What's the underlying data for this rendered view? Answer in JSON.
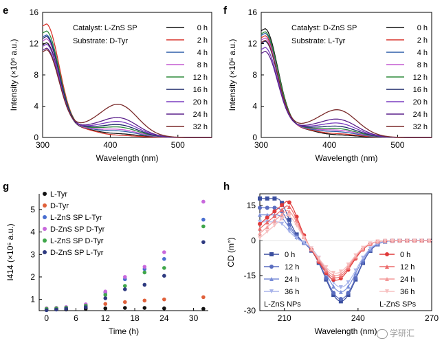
{
  "panels": [
    {
      "letter": "e",
      "type": "line",
      "xlabel": "Wavelength (nm)",
      "ylabel": "Intensity (×10⁶ a.u.)",
      "xlim": [
        300,
        550
      ],
      "ylim": [
        0,
        16
      ],
      "xticks": [
        300,
        400,
        500
      ],
      "yticks": [
        0,
        4,
        8,
        12,
        16
      ],
      "annotations": [
        "Catalyst: L-ZnS SP",
        "Substrate: D-Tyr"
      ],
      "legend": "right",
      "series": [
        {
          "name": "0 h",
          "color": "#111111",
          "peak": 12.1,
          "p412": 0.45
        },
        {
          "name": "2 h",
          "color": "#d9342b",
          "peak": 14.5,
          "p412": 0.25
        },
        {
          "name": "4 h",
          "color": "#2f5ea8",
          "peak": 13.1,
          "p412": 0.8
        },
        {
          "name": "8 h",
          "color": "#c45ad1",
          "peak": 12.6,
          "p412": 1.0
        },
        {
          "name": "12 h",
          "color": "#2e8b3c",
          "peak": 13.6,
          "p412": 1.3
        },
        {
          "name": "16 h",
          "color": "#1e2a6a",
          "peak": 12.9,
          "p412": 1.6
        },
        {
          "name": "20 h",
          "color": "#7a3cc0",
          "peak": 11.9,
          "p412": 2.0
        },
        {
          "name": "24 h",
          "color": "#5a1f8a",
          "peak": 11.4,
          "p412": 2.5
        },
        {
          "name": "32 h",
          "color": "#7a2a2a",
          "peak": 11.2,
          "p412": 4.2
        }
      ]
    },
    {
      "letter": "f",
      "type": "line",
      "xlabel": "Wavelength (nm)",
      "ylabel": "Intensity (×10⁶ a.u.)",
      "xlim": [
        300,
        550
      ],
      "ylim": [
        0,
        16
      ],
      "xticks": [
        300,
        400,
        500
      ],
      "yticks": [
        0,
        4,
        8,
        12,
        16
      ],
      "annotations": [
        "Catalyst: D-ZnS SP",
        "Substrate: L-Tyr"
      ],
      "legend": "right",
      "series": [
        {
          "name": "0 h",
          "color": "#111111",
          "peak": 13.9,
          "p412": 0.3
        },
        {
          "name": "2 h",
          "color": "#d9342b",
          "peak": 13.0,
          "p412": 0.45
        },
        {
          "name": "4 h",
          "color": "#2f5ea8",
          "peak": 13.3,
          "p412": 0.7
        },
        {
          "name": "8 h",
          "color": "#c45ad1",
          "peak": 12.7,
          "p412": 0.9
        },
        {
          "name": "12 h",
          "color": "#2e8b3c",
          "peak": 13.5,
          "p412": 1.1
        },
        {
          "name": "16 h",
          "color": "#1e2a6a",
          "peak": 12.3,
          "p412": 1.4
        },
        {
          "name": "20 h",
          "color": "#7a3cc0",
          "peak": 11.5,
          "p412": 1.8
        },
        {
          "name": "24 h",
          "color": "#5a1f8a",
          "peak": 11.0,
          "p412": 2.3
        },
        {
          "name": "32 h",
          "color": "#7a2a2a",
          "peak": 12.4,
          "p412": 3.5
        }
      ]
    },
    {
      "letter": "g",
      "type": "scatter",
      "xlabel": "Time (h)",
      "ylabel": "I414 (×10⁶ a.u.)",
      "xlim": [
        -1.5,
        33
      ],
      "ylim": [
        0.5,
        5.7
      ],
      "xticks": [
        0,
        6,
        12,
        18,
        24,
        30
      ],
      "yticks": [
        1,
        2,
        3,
        4,
        5
      ],
      "legend": "top-left",
      "series": [
        {
          "name": "L-Tyr",
          "color": "#111111",
          "x": [
            0,
            2,
            4,
            8,
            12,
            16,
            20,
            24,
            32
          ],
          "y": [
            0.55,
            0.55,
            0.55,
            0.58,
            0.6,
            0.62,
            0.62,
            0.6,
            0.58
          ]
        },
        {
          "name": "D-Tyr",
          "color": "#e0603a",
          "x": [
            0,
            2,
            4,
            8,
            12,
            16,
            20,
            24,
            32
          ],
          "y": [
            0.6,
            0.62,
            0.63,
            0.7,
            0.8,
            0.88,
            0.95,
            1.0,
            1.1
          ]
        },
        {
          "name": "L-ZnS SP L-Tyr",
          "color": "#4a6fd0",
          "x": [
            0,
            2,
            4,
            8,
            12,
            16,
            20,
            24,
            32
          ],
          "y": [
            0.55,
            0.58,
            0.62,
            0.75,
            1.3,
            1.9,
            2.35,
            2.8,
            4.55
          ]
        },
        {
          "name": "D-ZnS SP D-Tyr",
          "color": "#c868dc",
          "x": [
            0,
            2,
            4,
            8,
            12,
            16,
            20,
            24,
            32
          ],
          "y": [
            0.6,
            0.62,
            0.66,
            0.78,
            1.35,
            2.0,
            2.45,
            3.1,
            5.35
          ]
        },
        {
          "name": "L-ZnS SP D-Tyr",
          "color": "#3fa64a",
          "x": [
            0,
            2,
            4,
            8,
            12,
            16,
            20,
            24,
            32
          ],
          "y": [
            0.58,
            0.6,
            0.63,
            0.72,
            1.2,
            1.6,
            2.2,
            2.4,
            4.25
          ]
        },
        {
          "name": "D-ZnS SP L-Tyr",
          "color": "#2e3a80",
          "x": [
            0,
            2,
            4,
            8,
            12,
            16,
            20,
            24,
            32
          ],
          "y": [
            0.52,
            0.55,
            0.58,
            0.65,
            1.05,
            1.45,
            1.65,
            2.05,
            3.55
          ]
        }
      ]
    },
    {
      "letter": "h",
      "type": "line",
      "xlabel": "Wavelength (nm)",
      "ylabel": "CD (m°)",
      "xlim": [
        200,
        270
      ],
      "ylim": [
        -30,
        20
      ],
      "xticks": [
        210,
        240,
        270
      ],
      "yticks": [
        -30,
        -15,
        0,
        15
      ],
      "legend": "bottom",
      "groups": [
        "L-ZnS NPs",
        "L-ZnS SPs"
      ],
      "series": [
        {
          "name": "0 h",
          "group": 0,
          "color": "#3b4f9f",
          "marker": "square",
          "amp": 26,
          "pos": 18
        },
        {
          "name": "12 h",
          "group": 0,
          "color": "#5a6dc0",
          "marker": "circle",
          "amp": 25,
          "pos": 14
        },
        {
          "name": "24 h",
          "group": 0,
          "color": "#7a8ed8",
          "marker": "triangle",
          "amp": 22,
          "pos": 11
        },
        {
          "name": "36 h",
          "group": 0,
          "color": "#a8b4ea",
          "marker": "tri-down",
          "amp": 20,
          "pos": 8
        },
        {
          "name": "0 h",
          "group": 1,
          "color": "#e03a3a",
          "marker": "circle",
          "amp": 17,
          "pos": 17
        },
        {
          "name": "12 h",
          "group": 1,
          "color": "#ec6a6a",
          "marker": "triangle",
          "amp": 16,
          "pos": 15
        },
        {
          "name": "24 h",
          "group": 1,
          "color": "#f39a9a",
          "marker": "triangle",
          "amp": 15,
          "pos": 13
        },
        {
          "name": "36 h",
          "group": 1,
          "color": "#f7c0c0",
          "marker": "tri-down",
          "amp": 14,
          "pos": 11
        }
      ]
    }
  ],
  "watermark": "学研汇"
}
